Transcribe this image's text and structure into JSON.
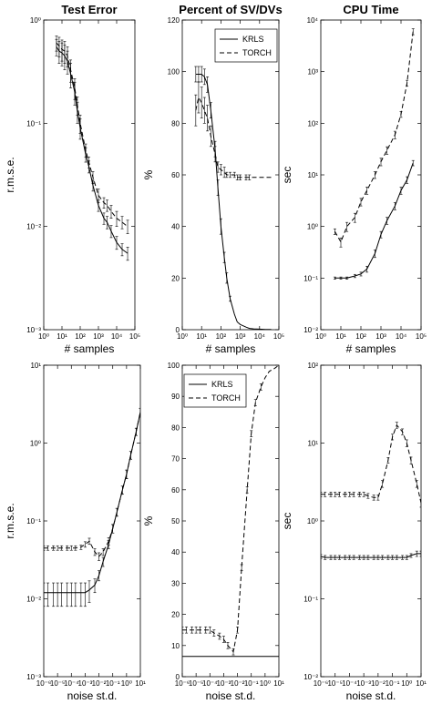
{
  "chart_data": [
    {
      "id": "p1",
      "type": "line",
      "title": "Test Error",
      "xlabel": "# samples",
      "ylabel": "r.m.s.e.",
      "xscale": "log",
      "yscale": "log",
      "xlim": [
        1,
        100000
      ],
      "ylim": [
        0.001,
        1
      ],
      "xticks": [
        "10⁰",
        "10¹",
        "10²",
        "10³",
        "10⁴",
        "10⁵"
      ],
      "yticks": [
        "10⁻³",
        "10⁻²",
        "10⁻¹",
        "10⁰"
      ],
      "legend": null,
      "series": [
        {
          "name": "KRLS",
          "style": "solid",
          "x": [
            5,
            7,
            10,
            14,
            20,
            30,
            50,
            70,
            100,
            200,
            300,
            500,
            1000,
            2000,
            3000,
            5000,
            10000,
            20000,
            40000
          ],
          "y": [
            0.55,
            0.5,
            0.48,
            0.45,
            0.4,
            0.3,
            0.2,
            0.13,
            0.09,
            0.05,
            0.038,
            0.025,
            0.016,
            0.012,
            0.011,
            0.009,
            0.007,
            0.006,
            0.0055
          ],
          "err": [
            0.1,
            0.12,
            0.12,
            0.12,
            0.1,
            0.08,
            0.05,
            0.03,
            0.02,
            0.008,
            0.005,
            0.003,
            0.002,
            0.0015,
            0.0015,
            0.0012,
            0.001,
            0.0008,
            0.0008
          ]
        },
        {
          "name": "TORCH",
          "style": "dashed",
          "x": [
            5,
            7,
            10,
            14,
            20,
            30,
            50,
            70,
            100,
            200,
            300,
            500,
            1000,
            2000,
            3000,
            5000,
            10000,
            20000,
            40000
          ],
          "y": [
            0.6,
            0.56,
            0.52,
            0.5,
            0.45,
            0.33,
            0.22,
            0.15,
            0.1,
            0.055,
            0.042,
            0.03,
            0.02,
            0.017,
            0.016,
            0.014,
            0.012,
            0.011,
            0.01
          ],
          "err": [
            0.1,
            0.12,
            0.12,
            0.12,
            0.1,
            0.08,
            0.05,
            0.03,
            0.02,
            0.008,
            0.005,
            0.004,
            0.003,
            0.002,
            0.002,
            0.002,
            0.002,
            0.0015,
            0.0015
          ]
        }
      ]
    },
    {
      "id": "p2",
      "type": "line",
      "title": "Percent of SV/DVs",
      "xlabel": "# samples",
      "ylabel": "%",
      "xscale": "log",
      "yscale": "linear",
      "xlim": [
        1,
        100000
      ],
      "ylim": [
        0,
        120
      ],
      "xticks": [
        "10⁰",
        "10¹",
        "10²",
        "10³",
        "10⁴",
        "10⁵"
      ],
      "yticks": [
        "0",
        "20",
        "40",
        "60",
        "80",
        "100",
        "120"
      ],
      "legend": {
        "placement": "top-right",
        "entries": [
          "KRLS",
          "TORCH"
        ]
      },
      "series": [
        {
          "name": "KRLS",
          "style": "solid",
          "x": [
            5,
            7,
            10,
            14,
            20,
            30,
            50,
            70,
            100,
            150,
            200,
            300,
            500,
            700,
            1000,
            2000,
            3000,
            5000,
            10000,
            20000,
            40000
          ],
          "y": [
            99,
            99,
            99,
            98,
            95,
            85,
            70,
            55,
            40,
            28,
            20,
            12,
            6,
            3,
            2,
            1,
            0.5,
            0.3,
            0.2,
            0.1,
            0.1
          ],
          "err": [
            3,
            3,
            3,
            3,
            3,
            3,
            3,
            3,
            3,
            2,
            2,
            1,
            0,
            0,
            0,
            0,
            0,
            0,
            0,
            0,
            0
          ]
        },
        {
          "name": "TORCH",
          "style": "dashed",
          "x": [
            5,
            7,
            10,
            14,
            20,
            30,
            50,
            70,
            100,
            150,
            200,
            300,
            500,
            700,
            1000,
            2000,
            3000,
            5000,
            10000,
            20000,
            40000
          ],
          "y": [
            85,
            90,
            88,
            85,
            82,
            75,
            68,
            63,
            62,
            61,
            60,
            60,
            60,
            59,
            59,
            59,
            59,
            59,
            59,
            59,
            59
          ],
          "err": [
            6,
            6,
            6,
            5,
            5,
            4,
            3,
            2,
            2,
            2,
            1,
            1,
            1,
            1,
            1,
            1,
            1,
            0,
            0,
            0,
            0
          ]
        }
      ]
    },
    {
      "id": "p3",
      "type": "line",
      "title": "CPU Time",
      "xlabel": "# samples",
      "ylabel": "sec",
      "xscale": "log",
      "yscale": "log",
      "xlim": [
        1,
        100000
      ],
      "ylim": [
        0.01,
        10000
      ],
      "xticks": [
        "10⁰",
        "10¹",
        "10²",
        "10³",
        "10⁴",
        "10⁵"
      ],
      "yticks": [
        "10⁻²",
        "10⁻¹",
        "10⁰",
        "10¹",
        "10²",
        "10³",
        "10⁴"
      ],
      "legend": null,
      "series": [
        {
          "name": "KRLS",
          "style": "solid",
          "x": [
            5,
            10,
            20,
            50,
            100,
            200,
            500,
            1000,
            2000,
            5000,
            10000,
            20000,
            40000
          ],
          "y": [
            0.1,
            0.1,
            0.1,
            0.11,
            0.12,
            0.15,
            0.3,
            0.7,
            1.3,
            2.5,
            5,
            8,
            17
          ],
          "err": [
            0.005,
            0.005,
            0.005,
            0.008,
            0.01,
            0.02,
            0.05,
            0.1,
            0.2,
            0.4,
            0.8,
            1.2,
            2
          ]
        },
        {
          "name": "TORCH",
          "style": "dashed",
          "x": [
            5,
            10,
            20,
            50,
            100,
            200,
            500,
            1000,
            2000,
            5000,
            10000,
            20000,
            40000
          ],
          "y": [
            0.8,
            0.5,
            1.0,
            1.5,
            3,
            5,
            10,
            18,
            30,
            60,
            150,
            600,
            6000
          ],
          "err": [
            0.1,
            0.1,
            0.2,
            0.3,
            0.5,
            0.8,
            1.5,
            3,
            5,
            10,
            20,
            80,
            800
          ]
        }
      ]
    },
    {
      "id": "p4",
      "type": "line",
      "title": "",
      "xlabel": "noise st.d.",
      "ylabel": "r.m.s.e.",
      "xscale": "log",
      "yscale": "log",
      "xlim": [
        1e-06,
        10
      ],
      "ylim": [
        0.001,
        10
      ],
      "xticks": [
        "10⁻⁶",
        "10⁻⁵",
        "10⁻⁴",
        "10⁻³",
        "10⁻²",
        "10⁻¹",
        "10⁰",
        "10¹"
      ],
      "yticks": [
        "10⁻³",
        "10⁻²",
        "10⁻¹",
        "10⁰",
        "10¹"
      ],
      "legend": null,
      "series": [
        {
          "name": "KRLS",
          "style": "solid",
          "x": [
            1e-06,
            2e-06,
            5e-06,
            1e-05,
            2e-05,
            5e-05,
            0.0001,
            0.0002,
            0.0005,
            0.001,
            0.002,
            0.005,
            0.01,
            0.02,
            0.05,
            0.1,
            0.2,
            0.5,
            1,
            2,
            5,
            10
          ],
          "y": [
            0.012,
            0.012,
            0.012,
            0.012,
            0.012,
            0.012,
            0.012,
            0.012,
            0.012,
            0.012,
            0.013,
            0.015,
            0.02,
            0.03,
            0.05,
            0.08,
            0.13,
            0.25,
            0.4,
            0.7,
            1.4,
            2.5
          ],
          "err": [
            0.004,
            0.004,
            0.004,
            0.004,
            0.004,
            0.004,
            0.004,
            0.004,
            0.004,
            0.004,
            0.004,
            0.003,
            0.003,
            0.004,
            0.006,
            0.01,
            0.015,
            0.03,
            0.05,
            0.08,
            0.15,
            0.3
          ]
        },
        {
          "name": "TORCH",
          "style": "dashed",
          "x": [
            1e-06,
            2e-06,
            5e-06,
            1e-05,
            2e-05,
            5e-05,
            0.0001,
            0.0002,
            0.0005,
            0.001,
            0.002,
            0.005,
            0.01,
            0.02,
            0.05,
            0.1,
            0.2,
            0.5,
            1,
            2,
            5,
            10
          ],
          "y": [
            0.045,
            0.045,
            0.045,
            0.045,
            0.045,
            0.045,
            0.045,
            0.045,
            0.046,
            0.05,
            0.055,
            0.04,
            0.035,
            0.04,
            0.055,
            0.08,
            0.13,
            0.25,
            0.4,
            0.7,
            1.4,
            2.5
          ],
          "err": [
            0.003,
            0.003,
            0.003,
            0.003,
            0.003,
            0.003,
            0.003,
            0.003,
            0.003,
            0.004,
            0.005,
            0.004,
            0.004,
            0.004,
            0.006,
            0.01,
            0.015,
            0.03,
            0.05,
            0.08,
            0.15,
            0.3
          ]
        }
      ]
    },
    {
      "id": "p5",
      "type": "line",
      "title": "",
      "xlabel": "noise st.d.",
      "ylabel": "%",
      "xscale": "log",
      "yscale": "linear",
      "xlim": [
        1e-06,
        10
      ],
      "ylim": [
        0,
        100
      ],
      "xticks": [
        "10⁻⁶",
        "10⁻⁵",
        "10⁻⁴",
        "10⁻³",
        "10⁻²",
        "10⁻¹",
        "10⁰",
        "10¹"
      ],
      "yticks": [
        "0",
        "10",
        "20",
        "30",
        "40",
        "50",
        "60",
        "70",
        "80",
        "90",
        "100"
      ],
      "legend": {
        "placement": "top-left",
        "entries": [
          "KRLS",
          "TORCH"
        ]
      },
      "series": [
        {
          "name": "KRLS",
          "style": "solid",
          "x": [
            1e-06,
            1e-05,
            0.0001,
            0.001,
            0.01,
            0.1,
            1,
            10
          ],
          "y": [
            6.5,
            6.5,
            6.5,
            6.5,
            6.5,
            6.5,
            6.5,
            6.5
          ],
          "err": [
            0,
            0,
            0,
            0,
            0,
            0,
            0,
            0
          ]
        },
        {
          "name": "TORCH",
          "style": "dashed",
          "x": [
            1e-06,
            2e-06,
            5e-06,
            1e-05,
            2e-05,
            5e-05,
            0.0001,
            0.0002,
            0.0005,
            0.001,
            0.002,
            0.005,
            0.01,
            0.02,
            0.05,
            0.1,
            0.2,
            0.5,
            1,
            2,
            5,
            10
          ],
          "y": [
            15,
            15,
            15,
            15,
            15,
            15,
            15,
            14,
            13,
            12,
            10,
            8,
            15,
            35,
            60,
            78,
            88,
            93,
            96,
            98,
            99,
            100
          ],
          "err": [
            1,
            1,
            1,
            1,
            1,
            1,
            1,
            1,
            1,
            1,
            1,
            1,
            1,
            1,
            1,
            1,
            1,
            1,
            0,
            0,
            0,
            0
          ]
        }
      ]
    },
    {
      "id": "p6",
      "type": "line",
      "title": "",
      "xlabel": "noise st.d.",
      "ylabel": "sec",
      "xscale": "log",
      "yscale": "log",
      "xlim": [
        1e-06,
        10
      ],
      "ylim": [
        0.01,
        100
      ],
      "xticks": [
        "10⁻⁶",
        "10⁻⁵",
        "10⁻⁴",
        "10⁻³",
        "10⁻²",
        "10⁻¹",
        "10⁰",
        "10¹"
      ],
      "yticks": [
        "10⁻²",
        "10⁻¹",
        "10⁰",
        "10¹",
        "10²"
      ],
      "legend": null,
      "series": [
        {
          "name": "KRLS",
          "style": "solid",
          "x": [
            1e-06,
            2e-06,
            5e-06,
            1e-05,
            2e-05,
            5e-05,
            0.0001,
            0.0002,
            0.0005,
            0.001,
            0.002,
            0.005,
            0.01,
            0.02,
            0.05,
            0.1,
            0.2,
            0.5,
            1,
            2,
            5,
            10
          ],
          "y": [
            0.35,
            0.34,
            0.34,
            0.34,
            0.34,
            0.34,
            0.34,
            0.34,
            0.34,
            0.34,
            0.34,
            0.34,
            0.34,
            0.34,
            0.34,
            0.34,
            0.34,
            0.34,
            0.34,
            0.36,
            0.38,
            0.38
          ],
          "err": [
            0.02,
            0.02,
            0.02,
            0.02,
            0.02,
            0.02,
            0.02,
            0.02,
            0.02,
            0.02,
            0.02,
            0.02,
            0.02,
            0.02,
            0.02,
            0.02,
            0.02,
            0.02,
            0.02,
            0.02,
            0.03,
            0.03
          ]
        },
        {
          "name": "TORCH",
          "style": "dashed",
          "x": [
            1e-06,
            2e-06,
            5e-06,
            1e-05,
            2e-05,
            5e-05,
            0.0001,
            0.0002,
            0.0005,
            0.001,
            0.002,
            0.005,
            0.01,
            0.02,
            0.05,
            0.1,
            0.2,
            0.5,
            1,
            2,
            5,
            10
          ],
          "y": [
            2.2,
            2.2,
            2.2,
            2.2,
            2.2,
            2.2,
            2.2,
            2.2,
            2.2,
            2.2,
            2.1,
            2.0,
            2.0,
            3,
            6,
            12,
            17,
            14,
            10,
            6,
            3,
            1.7
          ],
          "err": [
            0.15,
            0.15,
            0.15,
            0.15,
            0.15,
            0.15,
            0.15,
            0.15,
            0.15,
            0.15,
            0.15,
            0.15,
            0.15,
            0.3,
            0.5,
            1,
            1.5,
            1.2,
            1,
            0.6,
            0.3,
            0.2
          ]
        }
      ]
    }
  ]
}
